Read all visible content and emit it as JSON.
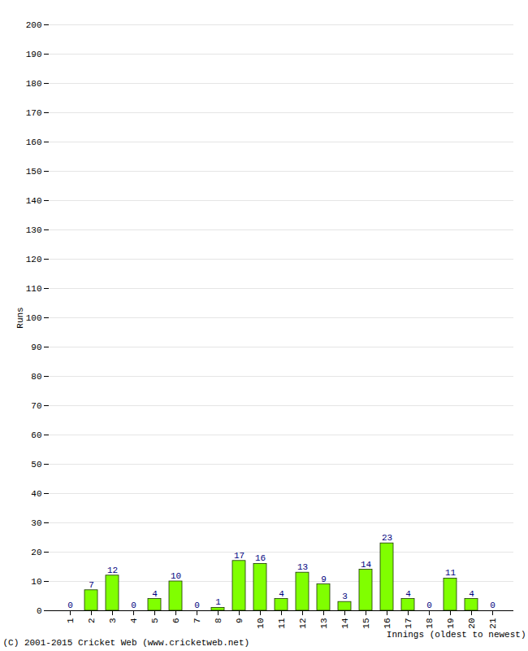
{
  "chart_data": {
    "type": "bar",
    "categories": [
      "1",
      "2",
      "3",
      "4",
      "5",
      "6",
      "7",
      "8",
      "9",
      "10",
      "11",
      "12",
      "13",
      "14",
      "15",
      "16",
      "17",
      "18",
      "19",
      "20",
      "21"
    ],
    "values": [
      0,
      7,
      12,
      0,
      4,
      10,
      0,
      1,
      17,
      16,
      4,
      13,
      9,
      3,
      14,
      23,
      4,
      0,
      11,
      4,
      0
    ],
    "color": "#80ff00",
    "ylabel": "Runs",
    "xlabel": "Innings (oldest to newest)",
    "caption": "(C) 2001-2015 Cricket Web (www.cricketweb.net)",
    "ylim": [
      0,
      200
    ],
    "yticks": [
      0,
      10,
      20,
      30,
      40,
      50,
      60,
      70,
      80,
      90,
      100,
      110,
      120,
      130,
      140,
      150,
      160,
      170,
      180,
      190,
      200
    ],
    "grid": true,
    "data_labels": true
  }
}
